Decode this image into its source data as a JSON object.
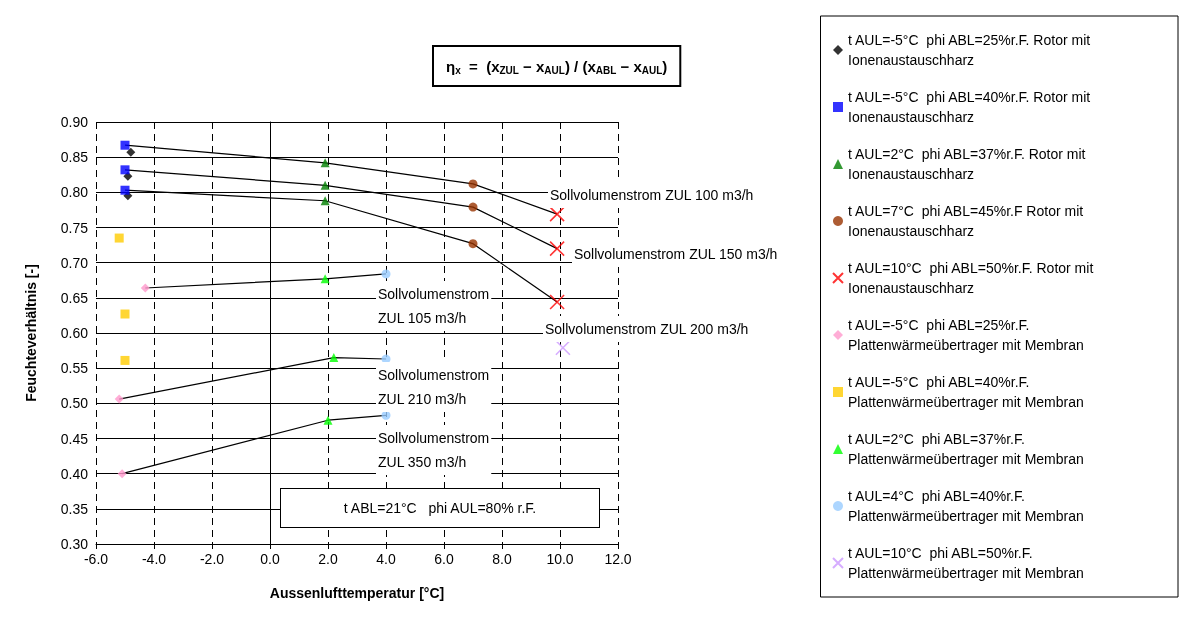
{
  "chart_data": {
    "type": "scatter",
    "xlabel": "Aussenlufttemperatur [°C]",
    "ylabel": "Feuchteverhältnis [-]",
    "xlim": [
      -6,
      12
    ],
    "xticks": [
      {
        "value": -6,
        "label": "-6.0"
      },
      {
        "value": -4,
        "label": "-4.0"
      },
      {
        "value": -2,
        "label": "-2.0"
      },
      {
        "value": 0,
        "label": "0.0"
      },
      {
        "value": 2,
        "label": "2.0"
      },
      {
        "value": 4,
        "label": "4.0"
      },
      {
        "value": 6,
        "label": "6.0"
      },
      {
        "value": 8,
        "label": "8.0"
      },
      {
        "value": 10,
        "label": "10.0"
      },
      {
        "value": 12,
        "label": "12.0"
      }
    ],
    "ylim": [
      0.3,
      0.9
    ],
    "yticks": [
      {
        "value": 0.3,
        "label": "0.30"
      },
      0.35,
      {
        "value": 0.4,
        "label": "0.40"
      },
      0.45,
      {
        "value": 0.5,
        "label": "0.50"
      },
      0.55,
      {
        "value": 0.6,
        "label": "0.60"
      },
      0.65,
      {
        "value": 0.7,
        "label": "0.70"
      },
      0.75,
      {
        "value": 0.8,
        "label": "0.80"
      },
      0.85,
      {
        "value": 0.9,
        "label": "0.90"
      }
    ],
    "grid": true,
    "legend": "right",
    "series": [
      {
        "type": "line",
        "color": "#000000",
        "marker": "none",
        "x": [
          -5.0,
          1.9,
          7.0,
          9.9
        ],
        "values": [
          0.867,
          0.842,
          0.812,
          0.769
        ]
      },
      {
        "type": "line",
        "color": "#000000",
        "marker": "none",
        "x": [
          -5.0,
          1.9,
          7.0,
          9.9
        ],
        "values": [
          0.832,
          0.81,
          0.779,
          0.72
        ]
      },
      {
        "type": "line",
        "color": "#000000",
        "marker": "none",
        "x": [
          -5.0,
          1.9,
          7.0,
          9.9
        ],
        "values": [
          0.803,
          0.788,
          0.727,
          0.644
        ]
      },
      {
        "type": "line",
        "color": "#000000",
        "marker": "none",
        "x": [
          -4.3,
          1.9,
          4.0
        ],
        "values": [
          0.664,
          0.677,
          0.684
        ]
      },
      {
        "type": "line",
        "color": "#000000",
        "marker": "none",
        "x": [
          -5.2,
          2.2,
          4.0
        ],
        "values": [
          0.506,
          0.565,
          0.563
        ]
      },
      {
        "type": "line",
        "color": "#000000",
        "marker": "none",
        "x": [
          -5.1,
          2.0,
          4.0
        ],
        "values": [
          0.4,
          0.476,
          0.483
        ]
      },
      {
        "name": "t AUL=-5°C  phi ABL=25%r.F. Rotor mit Ionenaustauschharz",
        "color": "#000000",
        "marker": "diamond",
        "x": [
          -4.8,
          -4.9,
          -4.9
        ],
        "values": [
          0.857,
          0.823,
          0.795
        ]
      },
      {
        "name": "t AUL=-5°C  phi ABL=40%r.F. Rotor mit Ionenaustauschharz",
        "color": "#0000ff",
        "marker": "square",
        "x": [
          -5.0,
          -5.0,
          -5.0
        ],
        "values": [
          0.867,
          0.832,
          0.803
        ]
      },
      {
        "name": "t AUL=2°C  phi ABL=37%r.F. Rotor mit Ionenaustauschharz",
        "color": "#008000",
        "marker": "triangle",
        "x": [
          1.9,
          1.9,
          1.9
        ],
        "values": [
          0.842,
          0.81,
          0.788
        ]
      },
      {
        "name": "t AUL=7°C  phi ABL=45%r.F Rotor mit Ionenaustauschharz",
        "color": "#993300",
        "marker": "circle",
        "x": [
          7.0,
          7.0,
          7.0
        ],
        "values": [
          0.812,
          0.779,
          0.727
        ]
      },
      {
        "name": "t AUL=10°C  phi ABL=50%r.F. Rotor mit Ionenaustauschharz",
        "color": "#ff0000",
        "marker": "cross",
        "x": [
          9.9,
          9.9,
          9.9
        ],
        "values": [
          0.769,
          0.72,
          0.644
        ]
      },
      {
        "name": "t AUL=-5°C  phi ABL=25%r.F. Plattenwärmeübertrager mit Membran",
        "color": "#ff99cc",
        "marker": "diamond",
        "x": [
          -4.3,
          -5.2,
          -5.1
        ],
        "values": [
          0.664,
          0.506,
          0.4
        ]
      },
      {
        "name": "t AUL=-5°C  phi ABL=40%r.F. Plattenwärmeübertrager mit Membran",
        "color": "#ffcc00",
        "marker": "square",
        "x": [
          -5.2,
          -5.0,
          -5.0
        ],
        "values": [
          0.735,
          0.627,
          0.561
        ]
      },
      {
        "name": "t AUL=2°C  phi ABL=37%r.F. Plattenwärmeübertrager mit Membran",
        "color": "#00ff00",
        "marker": "triangle",
        "x": [
          1.9,
          2.2,
          2.0
        ],
        "values": [
          0.677,
          0.565,
          0.476
        ]
      },
      {
        "name": "t AUL=4°C  phi ABL=40%r.F. Plattenwärmeübertrager mit Membran",
        "color": "#99ccff",
        "marker": "circle",
        "x": [
          4.0,
          4.0,
          4.0
        ],
        "values": [
          0.684,
          0.563,
          0.483
        ]
      },
      {
        "name": "t AUL=10°C  phi ABL=50%r.F. Plattenwärmeübertrager mit Membran",
        "color": "#cc99ff",
        "marker": "cross",
        "x": [
          10.1
        ],
        "values": [
          0.579
        ]
      }
    ],
    "annotations": [
      "Sollvolumenstrom ZUL 100 m3/h",
      "Sollvolumenstrom ZUL 150 m3/h",
      "Sollvolumenstrom ZUL 200 m3/h",
      "Sollvolumenstrom\nZUL 105 m3/h",
      "Sollvolumenstrom\nZUL 210 m3/h",
      "Sollvolumenstrom\nZUL 350 m3/h",
      "t ABL=21°C   phi AUL=80% r.F.",
      "η$_{x}$  =  (x$_{ZUL}$ − x$_{AUL}$) / (x$_{ABL}$ − x$_{AUL}$)"
    ]
  }
}
